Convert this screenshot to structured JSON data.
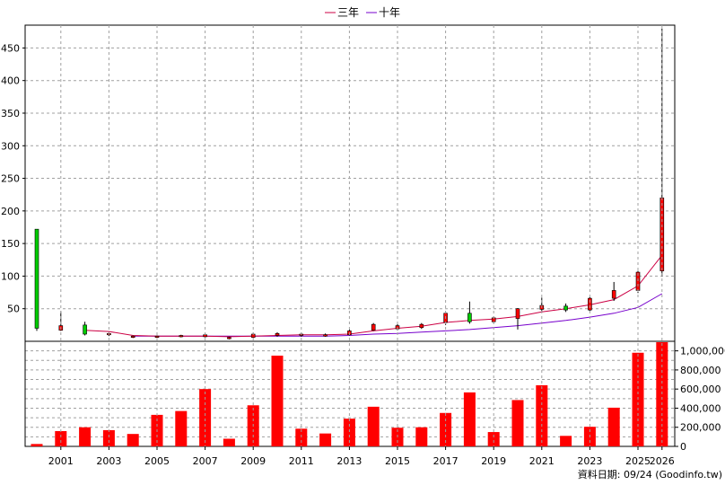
{
  "chart_data": {
    "type": "candlestick",
    "legend": [
      {
        "name": "三年",
        "color": "#cc0044"
      },
      {
        "name": "十年",
        "color": "#7700cc"
      }
    ],
    "legend_position": "top-center",
    "grid": true,
    "price_axis": {
      "ylim": [
        0,
        485
      ],
      "ticks": [
        "50",
        "100",
        "150",
        "200",
        "250",
        "300",
        "350",
        "400",
        "450"
      ]
    },
    "volume_axis": {
      "ylim": [
        0,
        1100000
      ],
      "ticks": [
        "0",
        "200,000",
        "400,000",
        "600,000",
        "800,000",
        "1,000,000"
      ]
    },
    "x_axis_labels": [
      "2001",
      "2003",
      "2005",
      "2007",
      "2009",
      "2011",
      "2013",
      "2015",
      "2017",
      "2019",
      "2021",
      "2023",
      "2025",
      "2026"
    ],
    "colors": {
      "up": "#ff0000",
      "down": "#00cc00",
      "volume": "#ff0000",
      "grid": "#a0a0a0"
    },
    "candles": [
      {
        "year": 2000,
        "open": 172,
        "high": 172,
        "low": 16,
        "close": 20
      },
      {
        "year": 2001,
        "open": 17,
        "high": 46,
        "low": 16,
        "close": 24
      },
      {
        "year": 2002,
        "open": 25,
        "high": 30,
        "low": 9,
        "close": 11
      },
      {
        "year": 2003,
        "open": 11,
        "high": 14,
        "low": 8,
        "close": 12
      },
      {
        "year": 2004,
        "open": 7,
        "high": 9,
        "low": 5,
        "close": 8
      },
      {
        "year": 2005,
        "open": 7,
        "high": 9,
        "low": 6,
        "close": 8
      },
      {
        "year": 2006,
        "open": 7,
        "high": 10,
        "low": 6,
        "close": 9
      },
      {
        "year": 2007,
        "open": 7,
        "high": 12,
        "low": 6,
        "close": 10
      },
      {
        "year": 2008,
        "open": 5,
        "high": 7,
        "low": 3,
        "close": 6
      },
      {
        "year": 2009,
        "open": 6,
        "high": 13,
        "low": 5,
        "close": 11
      },
      {
        "year": 2010,
        "open": 9,
        "high": 14,
        "low": 7,
        "close": 12
      },
      {
        "year": 2011,
        "open": 9,
        "high": 13,
        "low": 7,
        "close": 11
      },
      {
        "year": 2012,
        "open": 9,
        "high": 12,
        "low": 7,
        "close": 10
      },
      {
        "year": 2013,
        "open": 10,
        "high": 18,
        "low": 9,
        "close": 16
      },
      {
        "year": 2014,
        "open": 17,
        "high": 28,
        "low": 16,
        "close": 26
      },
      {
        "year": 2015,
        "open": 19,
        "high": 28,
        "low": 17,
        "close": 24
      },
      {
        "year": 2016,
        "open": 21,
        "high": 28,
        "low": 19,
        "close": 26
      },
      {
        "year": 2017,
        "open": 29,
        "high": 45,
        "low": 25,
        "close": 43
      },
      {
        "year": 2018,
        "open": 43,
        "high": 61,
        "low": 27,
        "close": 30
      },
      {
        "year": 2019,
        "open": 30,
        "high": 38,
        "low": 28,
        "close": 36
      },
      {
        "year": 2020,
        "open": 35,
        "high": 51,
        "low": 18,
        "close": 50
      },
      {
        "year": 2021,
        "open": 49,
        "high": 67,
        "low": 46,
        "close": 55
      },
      {
        "year": 2022,
        "open": 54,
        "high": 58,
        "low": 45,
        "close": 48
      },
      {
        "year": 2023,
        "open": 48,
        "high": 68,
        "low": 46,
        "close": 66
      },
      {
        "year": 2024,
        "open": 66,
        "high": 91,
        "low": 62,
        "close": 78
      },
      {
        "year": 2025,
        "open": 78,
        "high": 108,
        "low": 74,
        "close": 106
      },
      {
        "year": 2026,
        "open": 108,
        "high": 480,
        "low": 100,
        "close": 220
      }
    ],
    "ma_three_year": [
      {
        "year": 2002,
        "value": 17
      },
      {
        "year": 2003,
        "value": 15
      },
      {
        "year": 2004,
        "value": 9
      },
      {
        "year": 2005,
        "value": 8
      },
      {
        "year": 2006,
        "value": 8
      },
      {
        "year": 2007,
        "value": 8
      },
      {
        "year": 2008,
        "value": 7
      },
      {
        "year": 2009,
        "value": 8
      },
      {
        "year": 2010,
        "value": 9
      },
      {
        "year": 2011,
        "value": 10
      },
      {
        "year": 2012,
        "value": 10
      },
      {
        "year": 2013,
        "value": 11
      },
      {
        "year": 2014,
        "value": 16
      },
      {
        "year": 2015,
        "value": 20
      },
      {
        "year": 2016,
        "value": 23
      },
      {
        "year": 2017,
        "value": 29
      },
      {
        "year": 2018,
        "value": 32
      },
      {
        "year": 2019,
        "value": 34
      },
      {
        "year": 2020,
        "value": 38
      },
      {
        "year": 2021,
        "value": 45
      },
      {
        "year": 2022,
        "value": 50
      },
      {
        "year": 2023,
        "value": 56
      },
      {
        "year": 2024,
        "value": 64
      },
      {
        "year": 2025,
        "value": 85
      },
      {
        "year": 2026,
        "value": 132
      }
    ],
    "ma_ten_year": [
      {
        "year": 2004,
        "value": 8
      },
      {
        "year": 2005,
        "value": 8
      },
      {
        "year": 2006,
        "value": 8
      },
      {
        "year": 2007,
        "value": 8
      },
      {
        "year": 2008,
        "value": 8
      },
      {
        "year": 2009,
        "value": 8
      },
      {
        "year": 2010,
        "value": 8
      },
      {
        "year": 2011,
        "value": 8
      },
      {
        "year": 2012,
        "value": 8
      },
      {
        "year": 2013,
        "value": 9
      },
      {
        "year": 2014,
        "value": 11
      },
      {
        "year": 2015,
        "value": 12
      },
      {
        "year": 2016,
        "value": 14
      },
      {
        "year": 2017,
        "value": 16
      },
      {
        "year": 2018,
        "value": 18
      },
      {
        "year": 2019,
        "value": 21
      },
      {
        "year": 2020,
        "value": 24
      },
      {
        "year": 2021,
        "value": 28
      },
      {
        "year": 2022,
        "value": 32
      },
      {
        "year": 2023,
        "value": 37
      },
      {
        "year": 2024,
        "value": 43
      },
      {
        "year": 2025,
        "value": 52
      },
      {
        "year": 2026,
        "value": 73
      }
    ],
    "volumes": [
      {
        "year": 2000,
        "value": 25000
      },
      {
        "year": 2001,
        "value": 160000
      },
      {
        "year": 2002,
        "value": 200000
      },
      {
        "year": 2003,
        "value": 170000
      },
      {
        "year": 2004,
        "value": 130000
      },
      {
        "year": 2005,
        "value": 330000
      },
      {
        "year": 2006,
        "value": 370000
      },
      {
        "year": 2007,
        "value": 600000
      },
      {
        "year": 2008,
        "value": 80000
      },
      {
        "year": 2009,
        "value": 430000
      },
      {
        "year": 2010,
        "value": 950000
      },
      {
        "year": 2011,
        "value": 185000
      },
      {
        "year": 2012,
        "value": 135000
      },
      {
        "year": 2013,
        "value": 290000
      },
      {
        "year": 2014,
        "value": 415000
      },
      {
        "year": 2015,
        "value": 195000
      },
      {
        "year": 2016,
        "value": 200000
      },
      {
        "year": 2017,
        "value": 350000
      },
      {
        "year": 2018,
        "value": 565000
      },
      {
        "year": 2019,
        "value": 150000
      },
      {
        "year": 2020,
        "value": 485000
      },
      {
        "year": 2021,
        "value": 640000
      },
      {
        "year": 2022,
        "value": 110000
      },
      {
        "year": 2023,
        "value": 205000
      },
      {
        "year": 2024,
        "value": 405000
      },
      {
        "year": 2025,
        "value": 980000
      },
      {
        "year": 2026,
        "value": 1130000
      }
    ],
    "footer": "資料日期: 09/24 (Goodinfo.tw)"
  }
}
